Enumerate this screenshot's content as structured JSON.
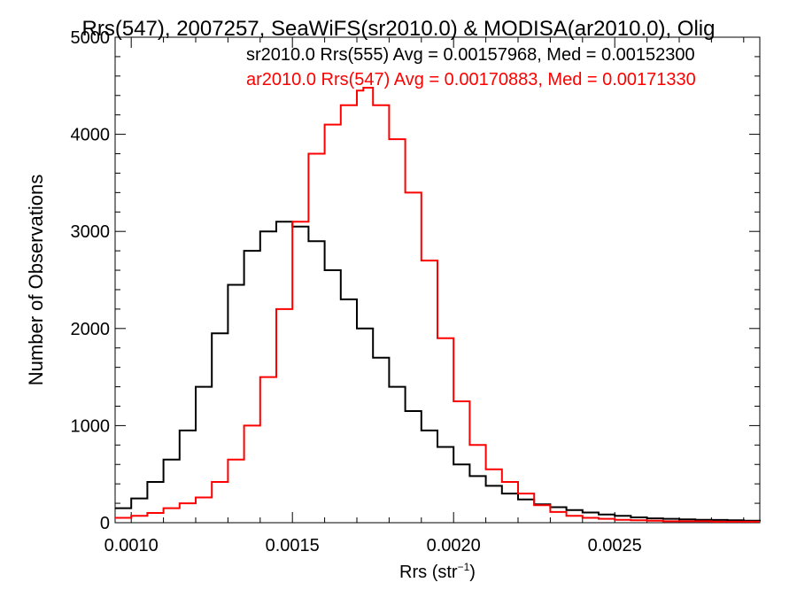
{
  "chart_data": {
    "type": "line",
    "title": "Rrs(547), 2007257, SeaWiFS(sr2010.0) & MODISA(ar2010.0), Olig",
    "xlabel": "Rrs (str",
    "xlabel_sup": "−1",
    "xlabel_close": ")",
    "ylabel": "Number of Observations",
    "xlim": [
      0.00095,
      0.00295
    ],
    "ylim": [
      0,
      5000
    ],
    "grid": false,
    "legend_placement": "top-right",
    "x_ticks": [
      0.001,
      0.0015,
      0.002,
      0.0025
    ],
    "x_tick_labels": [
      "0.0010",
      "0.0015",
      "0.0020",
      "0.0025"
    ],
    "y_ticks": [
      0,
      1000,
      2000,
      3000,
      4000,
      5000
    ],
    "y_tick_labels": [
      "0",
      "1000",
      "2000",
      "3000",
      "4000",
      "5000"
    ],
    "series": [
      {
        "name": "sr2010.0 Rrs(555) Avg = 0.00157968, Med = 0.00152300",
        "color": "#000000",
        "x": [
          0.00095,
          0.001,
          0.00105,
          0.0011,
          0.00115,
          0.0012,
          0.00125,
          0.0013,
          0.00135,
          0.0014,
          0.00145,
          0.0015,
          0.00155,
          0.0016,
          0.00165,
          0.0017,
          0.00175,
          0.0018,
          0.00185,
          0.0019,
          0.00195,
          0.002,
          0.00205,
          0.0021,
          0.00215,
          0.0022,
          0.00225,
          0.0023,
          0.00235,
          0.0024,
          0.00245,
          0.0025,
          0.00255,
          0.0026,
          0.00265,
          0.0027,
          0.00275,
          0.0028,
          0.00285,
          0.0029,
          0.00295
        ],
        "y": [
          150,
          250,
          420,
          650,
          950,
          1400,
          1950,
          2450,
          2800,
          3000,
          3100,
          3050,
          2900,
          2600,
          2300,
          2000,
          1700,
          1400,
          1150,
          950,
          780,
          600,
          480,
          380,
          300,
          240,
          190,
          160,
          130,
          105,
          85,
          70,
          55,
          45,
          40,
          35,
          30,
          28,
          25,
          20,
          15
        ]
      },
      {
        "name": "ar2010.0 Rrs(547) Avg = 0.00170883, Med = 0.00171330",
        "color": "#ff0000",
        "x": [
          0.00095,
          0.001,
          0.00105,
          0.0011,
          0.00115,
          0.0012,
          0.00125,
          0.0013,
          0.00135,
          0.0014,
          0.00145,
          0.0015,
          0.00155,
          0.0016,
          0.00165,
          0.0017,
          0.00172,
          0.00175,
          0.0018,
          0.00185,
          0.0019,
          0.00195,
          0.002,
          0.00205,
          0.0021,
          0.00215,
          0.0022,
          0.00225,
          0.0023,
          0.00235,
          0.0024,
          0.00245,
          0.0025,
          0.00255,
          0.0026,
          0.00265,
          0.0027,
          0.00275,
          0.0028,
          0.00285,
          0.0029,
          0.00295
        ],
        "y": [
          50,
          70,
          100,
          150,
          200,
          260,
          420,
          650,
          1000,
          1500,
          2200,
          3100,
          3800,
          4100,
          4300,
          4450,
          4480,
          4300,
          3950,
          3400,
          2700,
          1900,
          1250,
          800,
          550,
          420,
          300,
          180,
          110,
          70,
          50,
          40,
          30,
          25,
          20,
          15,
          15,
          15,
          10,
          10,
          10,
          10
        ]
      }
    ]
  }
}
